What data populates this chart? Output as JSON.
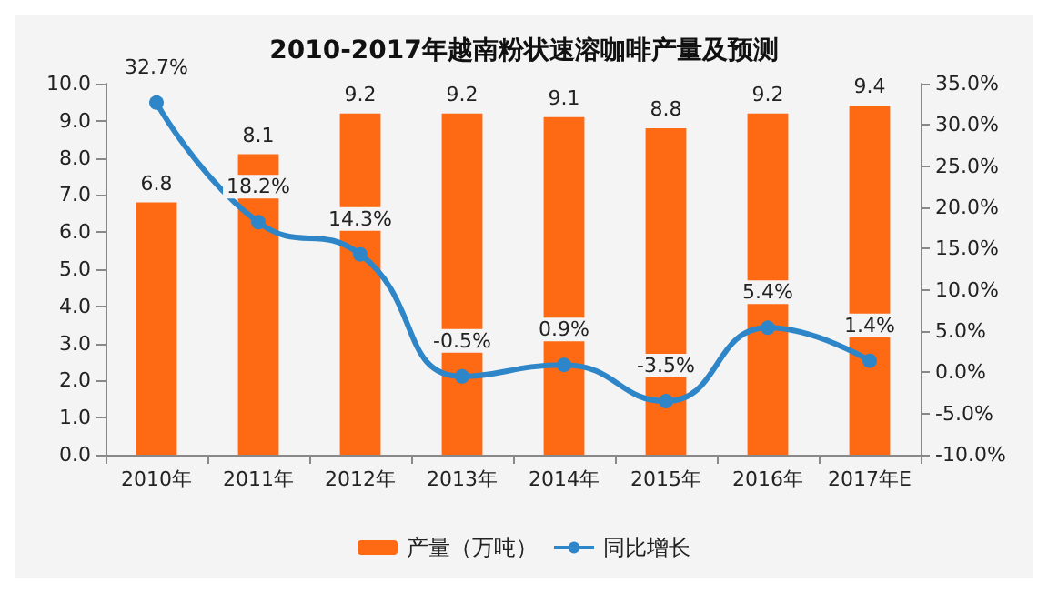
{
  "chart_data": {
    "type": "bar",
    "title": "2010-2017年越南粉状速溶咖啡产量及预测",
    "categories": [
      "2010年",
      "2011年",
      "2012年",
      "2013年",
      "2014年",
      "2015年",
      "2016年",
      "2017年E"
    ],
    "series": [
      {
        "name": "产量（万吨）",
        "color": "#fe6a14",
        "values": [
          6.8,
          8.1,
          9.2,
          9.2,
          9.1,
          8.8,
          9.2,
          9.4
        ],
        "value_labels": [
          "6.8",
          "8.1",
          "9.2",
          "9.2",
          "9.1",
          "8.8",
          "9.2",
          "9.4"
        ]
      },
      {
        "name": "同比增长",
        "type": "line",
        "axis": "y2",
        "color": "#2e86c8",
        "marker": "circle",
        "values": [
          32.7,
          18.2,
          14.3,
          -0.5,
          0.9,
          -3.5,
          5.4,
          1.4
        ],
        "value_labels": [
          "32.7%",
          "18.2%",
          "14.3%",
          "-0.5%",
          "0.9%",
          "-3.5%",
          "5.4%",
          "1.4%"
        ]
      }
    ],
    "ylim": [
      0,
      10
    ],
    "yticks": [
      {
        "value": 0,
        "label": "0.0"
      },
      {
        "value": 1,
        "label": "1.0"
      },
      {
        "value": 2,
        "label": "2.0"
      },
      {
        "value": 3,
        "label": "3.0"
      },
      {
        "value": 4,
        "label": "4.0"
      },
      {
        "value": 5,
        "label": "5.0"
      },
      {
        "value": 6,
        "label": "6.0"
      },
      {
        "value": 7,
        "label": "7.0"
      },
      {
        "value": 8,
        "label": "8.0"
      },
      {
        "value": 9,
        "label": "9.0"
      },
      {
        "value": 10,
        "label": "10.0"
      }
    ],
    "y2lim": [
      -10,
      35
    ],
    "y2ticks": [
      {
        "value": -10,
        "label": "-10.0%"
      },
      {
        "value": -5,
        "label": "-5.0%"
      },
      {
        "value": 0,
        "label": "0.0%"
      },
      {
        "value": 5,
        "label": "5.0%"
      },
      {
        "value": 10,
        "label": "10.0%"
      },
      {
        "value": 15,
        "label": "15.0%"
      },
      {
        "value": 20,
        "label": "20.0%"
      },
      {
        "value": 25,
        "label": "25.0%"
      },
      {
        "value": 30,
        "label": "30.0%"
      },
      {
        "value": 35,
        "label": "35.0%"
      }
    ],
    "legend": "bottom",
    "grid": false
  }
}
